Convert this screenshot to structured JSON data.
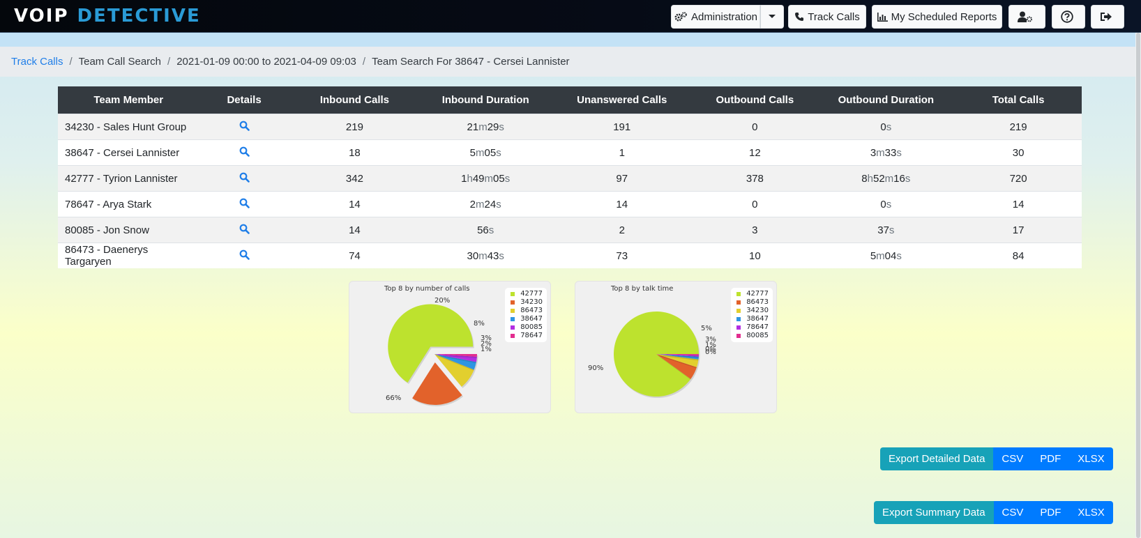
{
  "app": {
    "logo_left": "VOIP",
    "logo_right": "DETECTIVE"
  },
  "nav": {
    "administration": "Administration",
    "track_calls": "Track Calls",
    "scheduled_reports": "My Scheduled Reports"
  },
  "breadcrumb": {
    "item1": "Track Calls",
    "item2": "Team Call Search",
    "item3": "2021-01-09 00:00 to 2021-04-09 09:03",
    "item4": "Team Search For 38647 - Cersei Lannister"
  },
  "table": {
    "headers": [
      "Team Member",
      "Details",
      "Inbound Calls",
      "Inbound Duration",
      "Unanswered Calls",
      "Outbound Calls",
      "Outbound Duration",
      "Total Calls"
    ],
    "rows": [
      {
        "member": "34230 - Sales Hunt Group",
        "inbound_calls": "219",
        "inbound_duration": "21m29s",
        "unanswered": "191",
        "outbound_calls": "0",
        "outbound_duration": "0s",
        "total": "219"
      },
      {
        "member": "38647 - Cersei Lannister",
        "inbound_calls": "18",
        "inbound_duration": "5m05s",
        "unanswered": "1",
        "outbound_calls": "12",
        "outbound_duration": "3m33s",
        "total": "30"
      },
      {
        "member": "42777 - Tyrion Lannister",
        "inbound_calls": "342",
        "inbound_duration": "1h49m05s",
        "unanswered": "97",
        "outbound_calls": "378",
        "outbound_duration": "8h52m16s",
        "total": "720"
      },
      {
        "member": "78647 - Arya Stark",
        "inbound_calls": "14",
        "inbound_duration": "2m24s",
        "unanswered": "14",
        "outbound_calls": "0",
        "outbound_duration": "0s",
        "total": "14"
      },
      {
        "member": "80085 - Jon Snow",
        "inbound_calls": "14",
        "inbound_duration": "56s",
        "unanswered": "2",
        "outbound_calls": "3",
        "outbound_duration": "37s",
        "total": "17"
      },
      {
        "member": "86473 - Daenerys Targaryen",
        "inbound_calls": "74",
        "inbound_duration": "30m43s",
        "unanswered": "73",
        "outbound_calls": "10",
        "outbound_duration": "5m04s",
        "total": "84"
      }
    ]
  },
  "colors": {
    "green": "#bde22e",
    "orange": "#e2622b",
    "yellow": "#e2cf2e",
    "blue": "#2e95e2",
    "purple": "#b22ee2",
    "pink": "#e22e8f"
  },
  "chart_data": [
    {
      "type": "pie",
      "title": "Top 8 by number of calls",
      "legend_position": "top-right",
      "slices": [
        {
          "label": "42777",
          "value": 66,
          "color": "#bde22e",
          "exploded": true,
          "pct_label": "66%"
        },
        {
          "label": "34230",
          "value": 20,
          "color": "#e2622b",
          "exploded": true,
          "pct_label": "20%"
        },
        {
          "label": "86473",
          "value": 8,
          "color": "#e2cf2e",
          "exploded": false,
          "pct_label": "8%"
        },
        {
          "label": "38647",
          "value": 3,
          "color": "#2e95e2",
          "exploded": false,
          "pct_label": "3%"
        },
        {
          "label": "80085",
          "value": 2,
          "color": "#b22ee2",
          "exploded": false,
          "pct_label": "2%"
        },
        {
          "label": "78647",
          "value": 1,
          "color": "#e22e8f",
          "exploded": false,
          "pct_label": "1%"
        }
      ]
    },
    {
      "type": "pie",
      "title": "Top 8 by talk time",
      "legend_position": "top-right",
      "slices": [
        {
          "label": "42777",
          "value": 90,
          "color": "#bde22e",
          "exploded": false,
          "pct_label": "90%"
        },
        {
          "label": "86473",
          "value": 5,
          "color": "#e2622b",
          "exploded": false,
          "pct_label": "5%"
        },
        {
          "label": "34230",
          "value": 3,
          "color": "#e2cf2e",
          "exploded": false,
          "pct_label": "3%"
        },
        {
          "label": "38647",
          "value": 1,
          "color": "#2e95e2",
          "exploded": false,
          "pct_label": "1%"
        },
        {
          "label": "78647",
          "value": 0.5,
          "color": "#b22ee2",
          "exploded": false,
          "pct_label": "0%"
        },
        {
          "label": "80085",
          "value": 0.5,
          "color": "#e22e8f",
          "exploded": false,
          "pct_label": "0%"
        }
      ]
    }
  ],
  "export_detailed": {
    "label": "Export Detailed Data",
    "csv": "CSV",
    "pdf": "PDF",
    "xlsx": "XLSX"
  },
  "export_summary": {
    "label": "Export Summary Data",
    "csv": "CSV",
    "pdf": "PDF",
    "xlsx": "XLSX"
  }
}
